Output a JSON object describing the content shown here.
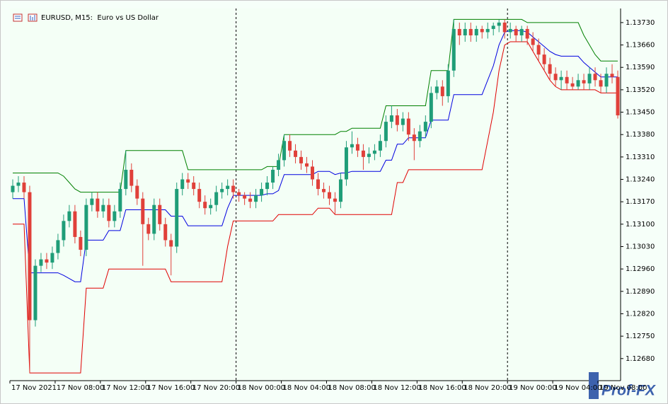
{
  "chart_data": {
    "type": "candlestick",
    "title": "EURUSD, M15:  Euro vs US Dollar",
    "watermark": "Prof-FX",
    "up_color": "#1f9d78",
    "down_color": "#e0403a",
    "period_separators": true,
    "grid": false,
    "categories": [
      "17 Nov 2021",
      null,
      null,
      null,
      null,
      null,
      null,
      null,
      "17 Nov 08:00",
      null,
      null,
      null,
      null,
      null,
      null,
      null,
      "17 Nov 12:00",
      null,
      null,
      null,
      null,
      null,
      null,
      null,
      "17 Nov 16:00",
      null,
      null,
      null,
      null,
      null,
      null,
      null,
      "17 Nov 20:00",
      null,
      null,
      null,
      null,
      null,
      null,
      null,
      "18 Nov 00:00",
      null,
      null,
      null,
      null,
      null,
      null,
      null,
      "18 Nov 04:00",
      null,
      null,
      null,
      null,
      null,
      null,
      null,
      "18 Nov 08:00",
      null,
      null,
      null,
      null,
      null,
      null,
      null,
      "18 Nov 12:00",
      null,
      null,
      null,
      null,
      null,
      null,
      null,
      "18 Nov 16:00",
      null,
      null,
      null,
      null,
      null,
      null,
      null,
      "18 Nov 20:00",
      null,
      null,
      null,
      null,
      null,
      null,
      null,
      "19 Nov 00:00",
      null,
      null,
      null,
      null,
      null,
      null,
      null,
      "19 Nov 04:00",
      null,
      null,
      null,
      null,
      null,
      null,
      null,
      "19 Nov 08:00",
      null,
      null,
      null
    ],
    "open": [
      1.132,
      1.1322,
      1.1323,
      1.132,
      1.128,
      1.1297,
      1.1299,
      1.1298,
      1.1301,
      1.1305,
      1.1311,
      1.1314,
      1.1306,
      1.1302,
      1.1316,
      1.1318,
      1.1314,
      1.1316,
      1.1311,
      1.1314,
      1.1321,
      1.1327,
      1.1322,
      1.1318,
      1.131,
      1.1307,
      1.1316,
      1.131,
      1.1305,
      1.1303,
      1.1321,
      1.1324,
      1.1323,
      1.1321,
      1.1317,
      1.1315,
      1.1316,
      1.132,
      1.1321,
      1.1322,
      1.132,
      1.1319,
      1.1318,
      1.1317,
      1.1319,
      1.1321,
      1.1323,
      1.1327,
      1.133,
      1.1336,
      1.1333,
      1.1331,
      1.1329,
      1.1328,
      1.1324,
      1.1321,
      1.132,
      1.1318,
      1.1317,
      1.1324,
      1.1334,
      1.1335,
      1.1333,
      1.1331,
      1.1332,
      1.1333,
      1.1336,
      1.1342,
      1.1344,
      1.1341,
      1.1343,
      1.1338,
      1.1336,
      1.1339,
      1.1342,
      1.1351,
      1.1353,
      1.135,
      1.1358,
      1.1371,
      1.1369,
      1.1371,
      1.1369,
      1.1371,
      1.137,
      1.1371,
      1.1372,
      1.1373,
      1.137,
      1.1371,
      1.1369,
      1.1371,
      1.1368,
      1.1366,
      1.1363,
      1.136,
      1.1357,
      1.1355,
      1.1356,
      1.1354,
      1.1353,
      1.1355,
      1.1354,
      1.1357,
      1.1355,
      1.1353,
      1.1357,
      1.1356
    ],
    "high": [
      1.1324,
      1.1325,
      1.1325,
      1.1322,
      1.1299,
      1.1301,
      1.1301,
      1.1303,
      1.1307,
      1.1313,
      1.1316,
      1.1316,
      1.1308,
      1.1318,
      1.132,
      1.132,
      1.1318,
      1.1318,
      1.1316,
      1.1323,
      1.1333,
      1.1329,
      1.1324,
      1.132,
      1.1312,
      1.1318,
      1.1318,
      1.1312,
      1.1307,
      1.1323,
      1.1326,
      1.1326,
      1.1325,
      1.1323,
      1.1319,
      1.1318,
      1.1322,
      1.1323,
      1.1324,
      1.1324,
      1.1321,
      1.132,
      1.132,
      1.1321,
      1.1323,
      1.1325,
      1.1328,
      1.1332,
      1.1338,
      1.1338,
      1.1335,
      1.1333,
      1.1331,
      1.133,
      1.1326,
      1.1323,
      1.1322,
      1.132,
      1.1326,
      1.1336,
      1.1339,
      1.1337,
      1.1335,
      1.1334,
      1.1335,
      1.1338,
      1.1344,
      1.1347,
      1.1346,
      1.1345,
      1.1345,
      1.134,
      1.1341,
      1.1344,
      1.1353,
      1.1355,
      1.1355,
      1.136,
      1.1374,
      1.1373,
      1.1373,
      1.1373,
      1.1372,
      1.1372,
      1.1373,
      1.1373,
      1.1374,
      1.1374,
      1.1373,
      1.1372,
      1.1372,
      1.1372,
      1.137,
      1.1368,
      1.1365,
      1.1362,
      1.1359,
      1.1358,
      1.1358,
      1.1356,
      1.1357,
      1.1357,
      1.1359,
      1.1359,
      1.1357,
      1.1359,
      1.136,
      1.1358
    ],
    "low": [
      1.1318,
      1.132,
      1.1318,
      1.12635,
      1.1278,
      1.1295,
      1.1296,
      1.1296,
      1.1299,
      1.1303,
      1.1309,
      1.1304,
      1.13,
      1.13,
      1.1314,
      1.1312,
      1.1312,
      1.1309,
      1.1309,
      1.1312,
      1.1319,
      1.132,
      1.1316,
      1.1297,
      1.1305,
      1.1305,
      1.1308,
      1.1303,
      1.1294,
      1.1301,
      1.1319,
      1.1321,
      1.1319,
      1.1315,
      1.1313,
      1.1313,
      1.1314,
      1.1318,
      1.1319,
      1.1318,
      1.1317,
      1.1316,
      1.1315,
      1.1315,
      1.1317,
      1.1319,
      1.1321,
      1.1325,
      1.1328,
      1.1331,
      1.1329,
      1.1327,
      1.1326,
      1.1322,
      1.1319,
      1.1318,
      1.1316,
      1.1313,
      1.1315,
      1.1322,
      1.1332,
      1.1331,
      1.1327,
      1.1329,
      1.133,
      1.1331,
      1.1334,
      1.134,
      1.1339,
      1.1339,
      1.1336,
      1.133,
      1.1334,
      1.1337,
      1.134,
      1.1349,
      1.1347,
      1.1348,
      1.1356,
      1.1366,
      1.1367,
      1.1367,
      1.1367,
      1.1368,
      1.1368,
      1.1369,
      1.137,
      1.1368,
      1.1368,
      1.1367,
      1.1367,
      1.1366,
      1.1364,
      1.1361,
      1.1358,
      1.1355,
      1.1353,
      1.1352,
      1.1352,
      1.1352,
      1.1352,
      1.1352,
      1.1352,
      1.1353,
      1.1351,
      1.1351,
      1.1354,
      1.1343
    ],
    "close": [
      1.1322,
      1.1323,
      1.132,
      1.128,
      1.1297,
      1.1299,
      1.1298,
      1.1301,
      1.1305,
      1.1311,
      1.1314,
      1.1306,
      1.1302,
      1.1316,
      1.1318,
      1.1314,
      1.1316,
      1.1311,
      1.1314,
      1.1321,
      1.1327,
      1.1322,
      1.1318,
      1.131,
      1.1307,
      1.1316,
      1.131,
      1.1305,
      1.1303,
      1.1321,
      1.1324,
      1.1323,
      1.1321,
      1.1317,
      1.1315,
      1.1316,
      1.132,
      1.1321,
      1.1322,
      1.132,
      1.1319,
      1.1318,
      1.1317,
      1.1319,
      1.1321,
      1.1323,
      1.1327,
      1.133,
      1.1336,
      1.1333,
      1.1331,
      1.1329,
      1.1328,
      1.1324,
      1.1321,
      1.132,
      1.1318,
      1.1317,
      1.1324,
      1.1334,
      1.1335,
      1.1333,
      1.1331,
      1.1332,
      1.1333,
      1.1336,
      1.1342,
      1.1344,
      1.1341,
      1.1343,
      1.1338,
      1.1336,
      1.1339,
      1.1342,
      1.1351,
      1.1353,
      1.135,
      1.1358,
      1.1371,
      1.1369,
      1.1371,
      1.1369,
      1.1371,
      1.137,
      1.1371,
      1.1372,
      1.1373,
      1.137,
      1.1371,
      1.1369,
      1.1371,
      1.1368,
      1.1366,
      1.1363,
      1.136,
      1.1357,
      1.1355,
      1.1356,
      1.1354,
      1.1353,
      1.1355,
      1.1354,
      1.1357,
      1.1355,
      1.1353,
      1.1357,
      1.1356,
      1.1344
    ],
    "lines": [
      {
        "color": "#008000",
        "values": [
          1.1326,
          1.1326,
          1.1326,
          1.1326,
          1.1326,
          1.1326,
          1.1326,
          1.1326,
          1.1326,
          1.1325,
          1.1323,
          1.1321,
          1.132,
          1.132,
          1.132,
          1.132,
          1.132,
          1.132,
          1.132,
          1.132,
          1.1333,
          1.1333,
          1.1333,
          1.1333,
          1.1333,
          1.1333,
          1.1333,
          1.1333,
          1.1333,
          1.1333,
          1.1333,
          1.1327,
          1.1327,
          1.1327,
          1.1327,
          1.1327,
          1.1327,
          1.1327,
          1.1327,
          1.1327,
          1.1327,
          1.1327,
          1.1327,
          1.1327,
          1.1327,
          1.1328,
          1.1328,
          1.1328,
          1.1338,
          1.1338,
          1.1338,
          1.1338,
          1.1338,
          1.1338,
          1.1338,
          1.1338,
          1.1338,
          1.1338,
          1.1339,
          1.1339,
          1.134,
          1.134,
          1.134,
          1.134,
          1.134,
          1.134,
          1.1347,
          1.1347,
          1.1347,
          1.1347,
          1.1347,
          1.1347,
          1.1347,
          1.1347,
          1.1358,
          1.1358,
          1.1358,
          1.1358,
          1.1374,
          1.1374,
          1.1374,
          1.1374,
          1.1374,
          1.1374,
          1.1374,
          1.1374,
          1.1374,
          1.1374,
          1.1374,
          1.1374,
          1.1374,
          1.1373,
          1.1373,
          1.1373,
          1.1373,
          1.1373,
          1.1373,
          1.1373,
          1.1373,
          1.1373,
          1.1373,
          1.1369,
          1.1366,
          1.1363,
          1.1361,
          1.1361,
          1.1361,
          1.1361
        ]
      },
      {
        "color": "#e00000",
        "values": [
          1.131,
          1.131,
          1.131,
          1.12635,
          1.12635,
          1.12635,
          1.12635,
          1.12635,
          1.12635,
          1.12635,
          1.12635,
          1.12635,
          1.12635,
          1.129,
          1.129,
          1.129,
          1.129,
          1.1296,
          1.1296,
          1.1296,
          1.1296,
          1.1296,
          1.1296,
          1.1296,
          1.1296,
          1.1296,
          1.1296,
          1.1296,
          1.1292,
          1.1292,
          1.1292,
          1.1292,
          1.1292,
          1.1292,
          1.1292,
          1.1292,
          1.1292,
          1.1292,
          1.1303,
          1.1311,
          1.1311,
          1.1311,
          1.1311,
          1.1311,
          1.1311,
          1.1311,
          1.1311,
          1.1313,
          1.1313,
          1.1313,
          1.1313,
          1.1313,
          1.1313,
          1.1313,
          1.1315,
          1.1315,
          1.1315,
          1.1313,
          1.1313,
          1.1313,
          1.1313,
          1.1313,
          1.1313,
          1.1313,
          1.1313,
          1.1313,
          1.1313,
          1.1313,
          1.1323,
          1.1323,
          1.1327,
          1.1327,
          1.1327,
          1.1327,
          1.1327,
          1.1327,
          1.1327,
          1.1327,
          1.1327,
          1.1327,
          1.1327,
          1.1327,
          1.1327,
          1.1327,
          1.1336,
          1.1345,
          1.1358,
          1.1366,
          1.1367,
          1.1367,
          1.1367,
          1.1367,
          1.1364,
          1.1361,
          1.1358,
          1.1355,
          1.1353,
          1.1352,
          1.1352,
          1.1352,
          1.1352,
          1.1352,
          1.1352,
          1.1352,
          1.1351,
          1.1351,
          1.1351,
          1.1351
        ]
      },
      {
        "color": "#0000e0",
        "values": [
          1.1318,
          1.1318,
          1.1318,
          1.12948,
          1.12948,
          1.12948,
          1.12948,
          1.12948,
          1.12948,
          1.1294,
          1.1293,
          1.1292,
          1.1292,
          1.1305,
          1.1305,
          1.1305,
          1.1305,
          1.1308,
          1.1308,
          1.1308,
          1.13145,
          1.13145,
          1.13145,
          1.13145,
          1.13145,
          1.13145,
          1.13145,
          1.13145,
          1.13125,
          1.13125,
          1.13125,
          1.13095,
          1.13095,
          1.13095,
          1.13095,
          1.13095,
          1.13095,
          1.13095,
          1.1315,
          1.1319,
          1.1319,
          1.1319,
          1.1319,
          1.1319,
          1.1319,
          1.13195,
          1.13195,
          1.13205,
          1.13255,
          1.13255,
          1.13255,
          1.13255,
          1.13255,
          1.13255,
          1.13265,
          1.13265,
          1.13265,
          1.13255,
          1.1326,
          1.1326,
          1.13265,
          1.13265,
          1.13265,
          1.13265,
          1.13265,
          1.13265,
          1.133,
          1.133,
          1.1335,
          1.1335,
          1.1337,
          1.1337,
          1.1337,
          1.1337,
          1.13425,
          1.13425,
          1.13425,
          1.13425,
          1.13505,
          1.13505,
          1.13505,
          1.13505,
          1.13505,
          1.13505,
          1.1355,
          1.13595,
          1.1366,
          1.137,
          1.13705,
          1.13705,
          1.13705,
          1.137,
          1.13685,
          1.1367,
          1.13655,
          1.1364,
          1.1363,
          1.13625,
          1.13625,
          1.13625,
          1.13625,
          1.13605,
          1.1359,
          1.13575,
          1.1356,
          1.1356,
          1.1356,
          1.1356
        ]
      }
    ],
    "ylim": [
      1.12611,
      1.13774
    ],
    "yticks": [
      {
        "value": 1.1268,
        "label": "1.12680"
      },
      {
        "value": 1.1275,
        "label": "1.12750"
      },
      {
        "value": 1.1282,
        "label": "1.12820"
      },
      {
        "value": 1.1289,
        "label": "1.12890"
      },
      {
        "value": 1.1296,
        "label": "1.12960"
      },
      {
        "value": 1.1303,
        "label": "1.13030"
      },
      {
        "value": 1.131,
        "label": "1.13100"
      },
      {
        "value": 1.1317,
        "label": "1.13170"
      },
      {
        "value": 1.1324,
        "label": "1.13240"
      },
      {
        "value": 1.1331,
        "label": "1.13310"
      },
      {
        "value": 1.1338,
        "label": "1.13380"
      },
      {
        "value": 1.1345,
        "label": "1.13450"
      },
      {
        "value": 1.1352,
        "label": "1.13520"
      },
      {
        "value": 1.1359,
        "label": "1.13590"
      },
      {
        "value": 1.1366,
        "label": "1.13660"
      },
      {
        "value": 1.1373,
        "label": "1.13730"
      }
    ]
  }
}
